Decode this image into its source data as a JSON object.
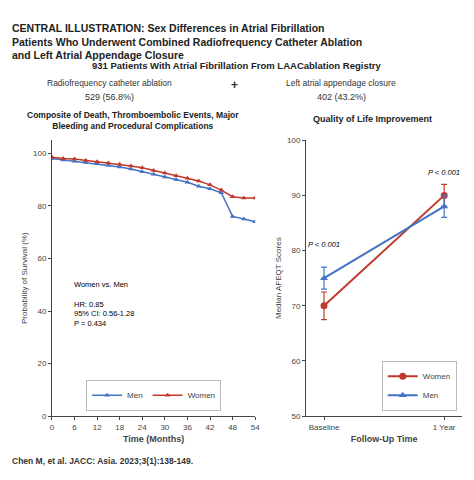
{
  "title": "CENTRAL ILLUSTRATION: Sex Differences in Atrial Fibrillation Patients Who Underwent Combined Radiofrequency Catheter Ablation and Left Atrial Appendage Closure",
  "subtitle": "931 Patients With Atrial Fibrillation From LAACablation Registry",
  "annotations": [
    "Radiofrequency catheter ablation",
    "+",
    "Left atrial appendage closure",
    "529 (56.8%)",
    "402 (43.2%)",
    "Chen M, et al. JACC: Asia. 2023;3(1):138-149."
  ],
  "chart_data": [
    {
      "type": "line",
      "title": "Composite of Death, Thromboembolic Events, Major Bleeding and Procedural Complications",
      "x": [
        0,
        3,
        6,
        9,
        12,
        15,
        18,
        21,
        24,
        27,
        30,
        33,
        36,
        39,
        42,
        45,
        48,
        51,
        54
      ],
      "series": [
        {
          "name": "Men",
          "color": "#4472c4",
          "marker": "triangle-up",
          "values": [
            98,
            97.5,
            97,
            96.5,
            96,
            95.5,
            94.8,
            94,
            93,
            92,
            91,
            90,
            89,
            87.5,
            86.5,
            85,
            76,
            75,
            74
          ]
        },
        {
          "name": "Women",
          "color": "#c0392b",
          "marker": "triangle-up",
          "values": [
            98.5,
            98,
            97.8,
            97.3,
            96.8,
            96.3,
            95.8,
            95.2,
            94.5,
            93.5,
            92.5,
            91.5,
            90.5,
            89.5,
            88,
            86,
            83.5,
            83,
            83
          ]
        }
      ],
      "xlabel": "Time (Months)",
      "ylabel": "Probability of Survival (%)",
      "xlim": [
        0,
        54
      ],
      "ylim": [
        0,
        105
      ],
      "xticks": [
        0,
        6,
        12,
        18,
        24,
        30,
        36,
        42,
        48,
        54
      ],
      "yticks": [
        0,
        20,
        40,
        60,
        80,
        100
      ],
      "grid": false,
      "legend": "lower center",
      "annotations": [
        "Women vs. Men",
        "HR: 0.85",
        "95% CI: 0.56-1.28",
        "P = 0.434"
      ]
    },
    {
      "type": "line",
      "title": "Quality of Life Improvement",
      "categories": [
        "Baseline",
        "1 Year"
      ],
      "series": [
        {
          "name": "Women",
          "color": "#c0392b",
          "marker": "circle",
          "values": [
            70,
            90
          ],
          "errors": [
            2.5,
            2.0
          ]
        },
        {
          "name": "Men",
          "color": "#4472c4",
          "marker": "triangle-up",
          "values": [
            75,
            88
          ],
          "errors": [
            2.0,
            2.0
          ]
        }
      ],
      "xlabel": "Follow-Up Time",
      "ylabel": "Median AFEQT Scores",
      "ylim": [
        50,
        100
      ],
      "yticks": [
        50,
        60,
        70,
        80,
        90,
        100
      ],
      "grid": false,
      "legend": "lower right",
      "annotations": [
        "P < 0.001",
        "P < 0.001"
      ]
    }
  ]
}
